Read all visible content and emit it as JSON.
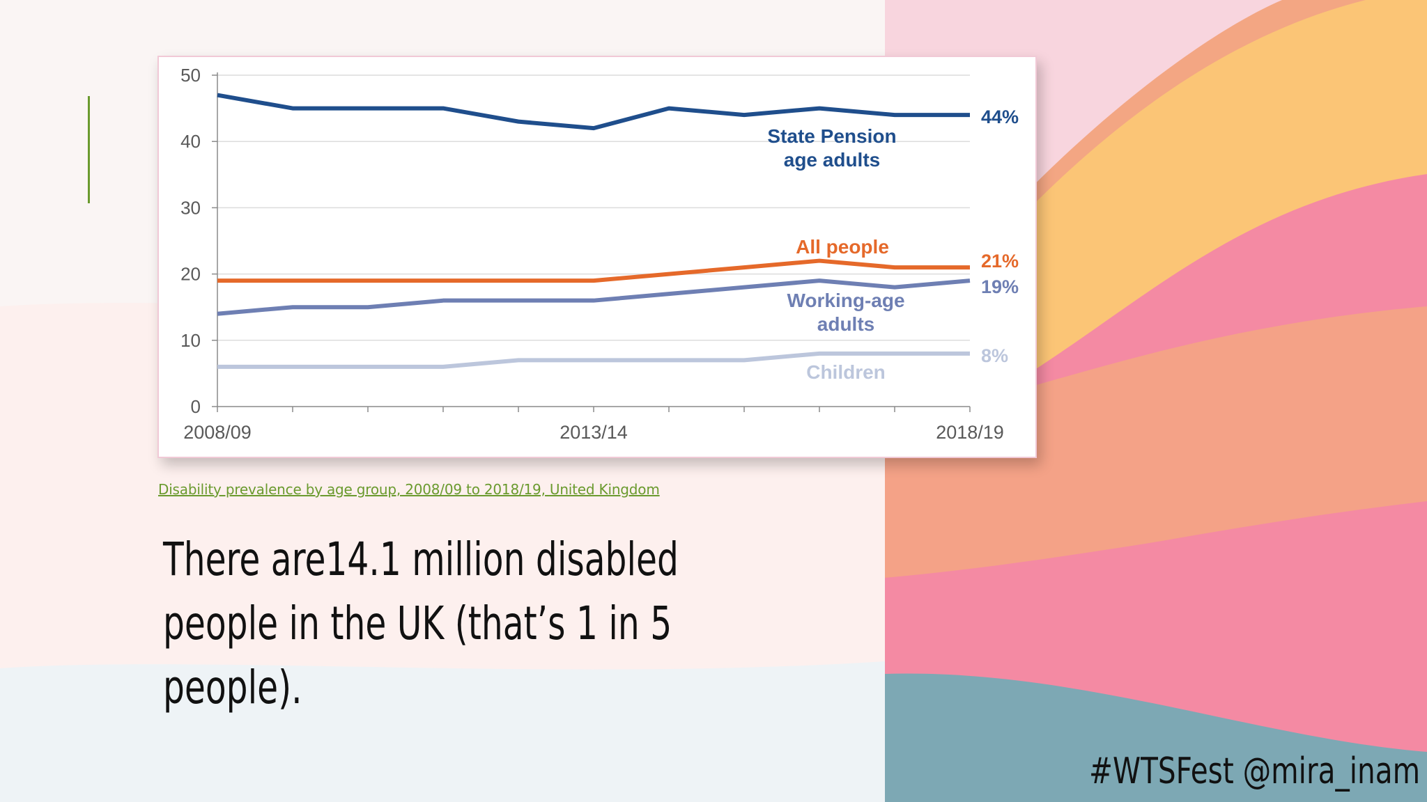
{
  "slide": {
    "source_caption": "Disability prevalence by age group, 2008/09 to 2018/19, United Kingdom",
    "headline": "There are14.1 million disabled people in the UK (that’s 1 in 5 people).",
    "hashtag": "#WTSFest @mira_inam"
  },
  "colors": {
    "accent_green": "#6a9a2e",
    "pink": "#f48aa3",
    "orange": "#f3a683",
    "yellow": "#fbc576",
    "teal": "#7da8b4"
  },
  "chart_data": {
    "type": "line",
    "x": [
      "2008/09",
      "2009/10",
      "2010/11",
      "2011/12",
      "2012/13",
      "2013/14",
      "2014/15",
      "2015/16",
      "2016/17",
      "2017/18",
      "2018/19"
    ],
    "x_tick_labels": [
      "2008/09",
      "2013/14",
      "2018/19"
    ],
    "y_ticks": [
      0,
      10,
      20,
      30,
      40,
      50
    ],
    "ylim": [
      0,
      50
    ],
    "grid": true,
    "series": [
      {
        "name": "State Pension age adults",
        "color": "#1f4e8c",
        "end_label": "44%",
        "values": [
          47,
          45,
          45,
          45,
          43,
          42,
          45,
          44,
          45,
          44,
          44
        ]
      },
      {
        "name": "All people",
        "color": "#e5692a",
        "end_label": "21%",
        "values": [
          19,
          19,
          19,
          19,
          19,
          19,
          20,
          21,
          22,
          21,
          21
        ]
      },
      {
        "name": "Working-age adults",
        "color": "#6e7fb3",
        "end_label": "19%",
        "values": [
          14,
          15,
          15,
          16,
          16,
          16,
          17,
          18,
          19,
          18,
          19
        ]
      },
      {
        "name": "Children",
        "color": "#bcc6dc",
        "end_label": "8%",
        "values": [
          6,
          6,
          6,
          6,
          7,
          7,
          7,
          7,
          8,
          8,
          8
        ]
      }
    ]
  }
}
